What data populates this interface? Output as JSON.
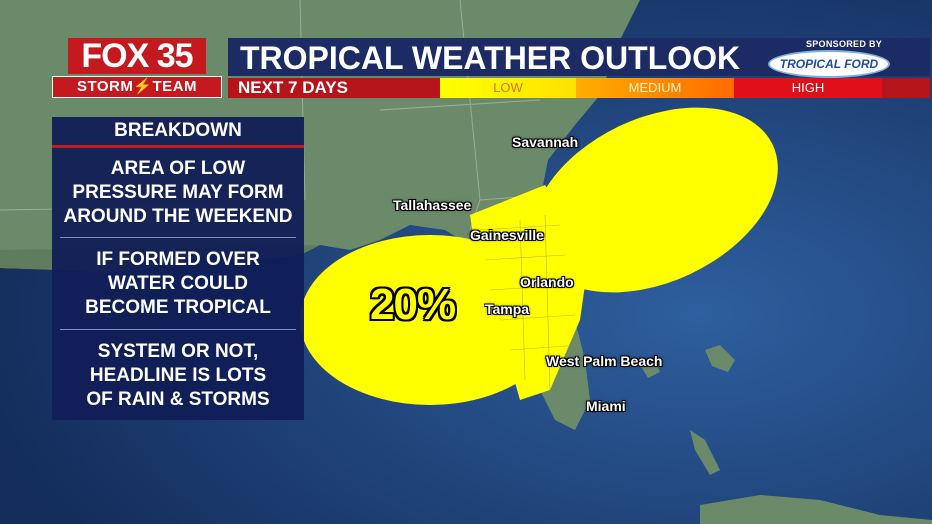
{
  "header": {
    "logo_top": "FOX 35",
    "logo_bottom": "STORM⚡TEAM",
    "title": "TROPICAL WEATHER OUTLOOK",
    "subtitle": "NEXT 7 DAYS",
    "sponsor_label": "SPONSORED BY",
    "sponsor_name": "TROPICAL FORD"
  },
  "risk_scale": {
    "low": "LOW",
    "medium": "MEDIUM",
    "high": "HIGH",
    "colors": {
      "low": "#ffff00",
      "medium": "#ff8c00",
      "high": "#e0101a"
    }
  },
  "breakdown": {
    "title": "BREAKDOWN",
    "items": [
      {
        "lines": [
          "AREA OF LOW",
          "PRESSURE MAY FORM",
          "AROUND THE WEEKEND"
        ]
      },
      {
        "lines": [
          "IF FORMED OVER",
          "WATER COULD",
          "BECOME TROPICAL"
        ]
      },
      {
        "lines": [
          "SYSTEM OR NOT,",
          "HEADLINE IS LOTS",
          "OF RAIN & STORMS"
        ]
      }
    ]
  },
  "outlook": {
    "probability": "20%",
    "risk_level": "low",
    "area_color": "#ffff00"
  },
  "cities": {
    "savannah": "Savannah",
    "tallahassee": "Tallahassee",
    "gainesville": "Gainesville",
    "orlando": "Orlando",
    "tampa": "Tampa",
    "west_palm_beach": "West Palm Beach",
    "miami": "Miami"
  }
}
